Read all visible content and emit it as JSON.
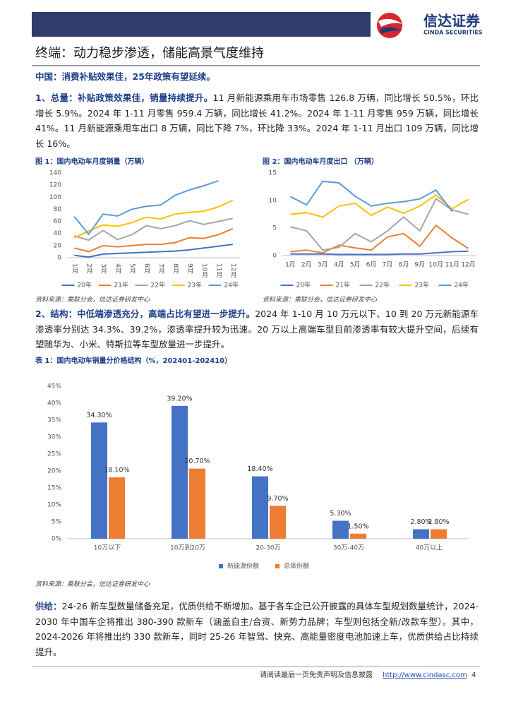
{
  "header": {
    "logo_cn": "信达证券",
    "logo_en": "CINDA SECURITIES"
  },
  "title": "终端：动力稳步渗透，储能高景气度维持",
  "subhead": "中国：消费补贴效果佳，25年政策有望延续。",
  "para1": {
    "lead": "1、总量：补贴政策效果佳，销量持续提升。",
    "text": "11 月新能源乘用车市场零售 126.8 万辆，同比增长 50.5%，环比增长 5.9%。2024 年 1-11 月零售 959.4 万辆，同比增长 41.2%。2024 年 1-11 月零售 959 万辆，同比增长 41%。11 月新能源乘用车出口 8 万辆，同比下降 7%，环比降 33%。2024 年 1-11 月出口 109 万辆，同比增长 16%。"
  },
  "charts": [
    {
      "type": "line",
      "title": "图 1：国内电动车月度销量（万辆）",
      "categories": [
        "1月",
        "2月",
        "3月",
        "4月",
        "5月",
        "6月",
        "7月",
        "8月",
        "9月",
        "10月",
        "11月",
        "12月"
      ],
      "ylim": [
        0,
        140
      ],
      "yticks": [
        0,
        20,
        40,
        60,
        80,
        100,
        120,
        140
      ],
      "grid": false,
      "series": [
        {
          "name": "20年",
          "color": "#4472c4",
          "values": [
            4,
            1,
            6,
            7,
            8,
            9,
            10,
            11,
            13,
            16,
            19,
            22
          ]
        },
        {
          "name": "21年",
          "color": "#ed7d31",
          "values": [
            16,
            10,
            20,
            18,
            20,
            22,
            22,
            25,
            33,
            32,
            38,
            48
          ]
        },
        {
          "name": "22年",
          "color": "#a5a5a5",
          "values": [
            36,
            29,
            45,
            30,
            38,
            53,
            48,
            53,
            61,
            55,
            60,
            65
          ]
        },
        {
          "name": "23年",
          "color": "#ffc000",
          "values": [
            33,
            44,
            54,
            52,
            58,
            67,
            64,
            72,
            75,
            77,
            84,
            95
          ]
        },
        {
          "name": "24年",
          "color": "#5b9bd5",
          "values": [
            68,
            39,
            72,
            69,
            80,
            85,
            87,
            103,
            112,
            119,
            127,
            null
          ]
        }
      ]
    },
    {
      "type": "line",
      "title": "图 2：国内电动车月度出口 （万辆）",
      "categories": [
        "1月",
        "2月",
        "3月",
        "4月",
        "5月",
        "6月",
        "7月",
        "8月",
        "9月",
        "10月",
        "11月",
        "12月"
      ],
      "ylim": [
        0,
        15
      ],
      "yticks": [
        0,
        5,
        10,
        15
      ],
      "grid": false,
      "series": [
        {
          "name": "20年",
          "color": "#4472c4",
          "values": [
            0.3,
            0.3,
            0.3,
            0.2,
            0.2,
            0.2,
            0.2,
            0.3,
            0.3,
            0.5,
            0.7,
            0.8
          ]
        },
        {
          "name": "21年",
          "color": "#ed7d31",
          "values": [
            0.7,
            1.0,
            0.5,
            1.9,
            1.4,
            1.0,
            3.4,
            4.0,
            1.7,
            5.5,
            3.2,
            1.3
          ]
        },
        {
          "name": "22年",
          "color": "#a5a5a5",
          "values": [
            5.2,
            4.5,
            1.0,
            1.5,
            4.0,
            2.5,
            4.5,
            7.0,
            4.5,
            10.3,
            8.3,
            7.5
          ]
        },
        {
          "name": "23年",
          "color": "#ffc000",
          "values": [
            7.5,
            7.8,
            7.0,
            9.0,
            9.5,
            7.3,
            8.8,
            7.7,
            9.0,
            11.0,
            8.5,
            10.2
          ]
        },
        {
          "name": "24年",
          "color": "#5b9bd5",
          "values": [
            10.7,
            9.2,
            13.5,
            13.2,
            10.8,
            9.0,
            9.5,
            9.8,
            10.3,
            11.9,
            8.0,
            null
          ]
        }
      ]
    },
    {
      "type": "bar",
      "title": "表 1：国内电动车销量分价格结构（%，202401-202410）",
      "categories": [
        "10万以下",
        "10万到20万",
        "20-30万",
        "30万-40万",
        "40万以上"
      ],
      "ylim": [
        0,
        45
      ],
      "yticks": [
        {
          "value": 0,
          "label": "0%"
        },
        {
          "value": 5,
          "label": "5%"
        },
        {
          "value": 10,
          "label": "10%"
        },
        {
          "value": 15,
          "label": "15%"
        },
        {
          "value": 20,
          "label": "20%"
        },
        {
          "value": 25,
          "label": "25%"
        },
        {
          "value": 30,
          "label": "30%"
        },
        {
          "value": 35,
          "label": "35%"
        },
        {
          "value": 40,
          "label": "40%"
        },
        {
          "value": 45,
          "label": "45%"
        }
      ],
      "grid": false,
      "series": [
        {
          "name": "新能源份额",
          "color": "#4472c4",
          "values": [
            34.3,
            39.2,
            18.4,
            5.3,
            2.8
          ],
          "value_labels": [
            "34.30%",
            "39.20%",
            "18.40%",
            "5.30%",
            "2.80%"
          ]
        },
        {
          "name": "总体份额",
          "color": "#ed7d31",
          "values": [
            18.1,
            20.7,
            9.7,
            1.5,
            2.8
          ],
          "value_labels": [
            "18.10%",
            "20.70%",
            "9.70%",
            "1.50%",
            "2.80%"
          ]
        }
      ]
    }
  ],
  "source1": "资料来源：乘联分会，信达证券研发中心",
  "source2": "资料来源：乘联分会，信达证券研发中心",
  "para2": {
    "lead": "2、结构：中低端渗透充分，高端占比有望进一步提升。",
    "text": "2024 年 1-10 月 10 万元以下、10 到 20 万元新能源车渗透率分别达 34.3%、39.2%，渗透率提升较为迅速。20 万以上高端车型目前渗透率有较大提升空间，后续有望随华为、小米、特斯拉等车型放量进一步提升。"
  },
  "source3": "资料来源：乘联分会，信达证券研发中心",
  "para3": {
    "lead": "供给：",
    "text": "24-26 新车型数量储备充足，优质供给不断增加。基于各车企已公开披露的具体车型规划数量统计，2024-2030 年中国车企将推出 380-390 款新车（涵盖自主/合资、新势力品牌；车型则包括全新/改款车型）。其中，2024-2026 年将推出约 330 款新车，同时 25-26 年智驾、快充、高能量密度电池加速上车，优质供给占比持续提升。"
  },
  "footer": {
    "disclaimer": "请阅读最后一页免责声明及信息披露",
    "url": "http://www.cindasc.com",
    "page": "4"
  }
}
